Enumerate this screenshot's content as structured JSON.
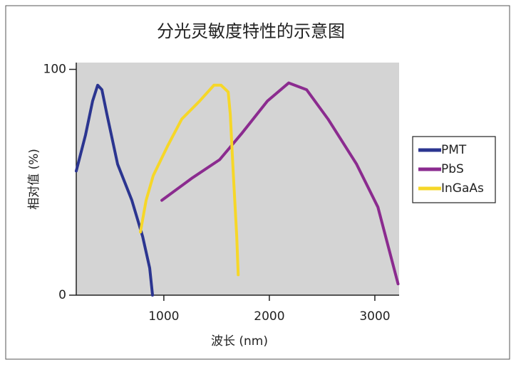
{
  "chart_data": {
    "type": "line",
    "title": "分光灵敏度特性的示意图",
    "x_label": "波长 (nm)",
    "y_label": "相对值 (%)",
    "xlim": [
      170,
      3230
    ],
    "ylim": [
      0,
      103
    ],
    "xticks": [
      1000,
      2000,
      3000
    ],
    "yticks": [
      0,
      100
    ],
    "legend": "right",
    "background": "#d4d4d4",
    "series": [
      {
        "name": "PMT",
        "color": "#2b3590",
        "x": [
          170,
          258,
          325,
          373,
          413,
          461,
          562,
          697,
          799,
          866,
          893
        ],
        "values": [
          55,
          71,
          86,
          93,
          91,
          80,
          58,
          42,
          26,
          12,
          0
        ]
      },
      {
        "name": "PbS",
        "color": "#8b2b8f",
        "x": [
          981,
          1272,
          1529,
          1745,
          1982,
          2184,
          2353,
          2556,
          2827,
          3029,
          3220
        ],
        "values": [
          42,
          52,
          60,
          72,
          86,
          94,
          91,
          78,
          58,
          39,
          5
        ]
      },
      {
        "name": "InGaAs",
        "color": "#f6d728",
        "x": [
          778,
          832,
          900,
          1035,
          1170,
          1340,
          1475,
          1542,
          1610,
          1630,
          1657,
          1691,
          1705
        ],
        "values": [
          28,
          42,
          53,
          66,
          78,
          86,
          93,
          93,
          90,
          80,
          55,
          26,
          9
        ]
      }
    ]
  }
}
